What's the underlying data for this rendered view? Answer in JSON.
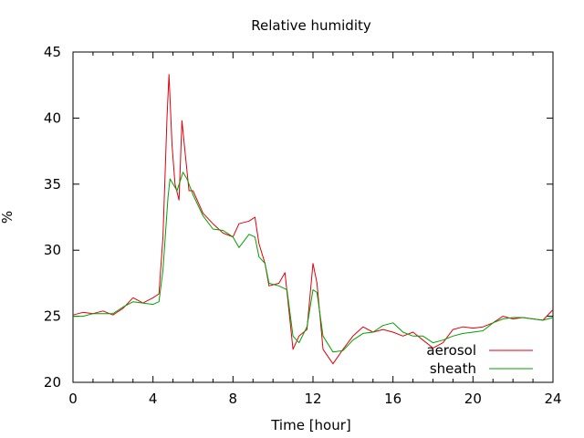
{
  "chart_data": {
    "type": "line",
    "title": "Relative humidity",
    "xlabel": "Time [hour]",
    "ylabel": "%",
    "xlim": [
      0,
      24
    ],
    "ylim": [
      20,
      45
    ],
    "xticks": [
      0,
      4,
      8,
      12,
      16,
      20,
      24
    ],
    "yticks": [
      20,
      25,
      30,
      35,
      40,
      45
    ],
    "grid": false,
    "legend_position": "bottom-right",
    "series": [
      {
        "name": "aerosol",
        "color": "#e0000b",
        "points": [
          [
            0,
            25.1
          ],
          [
            0.5,
            25.3
          ],
          [
            1,
            25.2
          ],
          [
            1.5,
            25.4
          ],
          [
            2,
            25.1
          ],
          [
            2.5,
            25.6
          ],
          [
            3,
            26.4
          ],
          [
            3.5,
            26.0
          ],
          [
            4,
            26.4
          ],
          [
            4.3,
            26.7
          ],
          [
            4.5,
            31.0
          ],
          [
            4.7,
            40.0
          ],
          [
            4.8,
            43.3
          ],
          [
            4.95,
            38.0
          ],
          [
            5.1,
            35.0
          ],
          [
            5.3,
            33.8
          ],
          [
            5.45,
            39.8
          ],
          [
            5.6,
            37.5
          ],
          [
            5.8,
            34.5
          ],
          [
            6,
            34.5
          ],
          [
            6.5,
            32.8
          ],
          [
            7,
            32.0
          ],
          [
            7.5,
            31.3
          ],
          [
            8,
            31.0
          ],
          [
            8.3,
            32.0
          ],
          [
            8.8,
            32.2
          ],
          [
            9.1,
            32.5
          ],
          [
            9.3,
            30.5
          ],
          [
            9.6,
            29.0
          ],
          [
            9.8,
            27.3
          ],
          [
            10.3,
            27.5
          ],
          [
            10.6,
            28.3
          ],
          [
            11,
            22.5
          ],
          [
            11.3,
            23.5
          ],
          [
            11.7,
            24.0
          ],
          [
            12,
            29.0
          ],
          [
            12.2,
            27.5
          ],
          [
            12.5,
            22.5
          ],
          [
            13,
            21.4
          ],
          [
            13.5,
            22.5
          ],
          [
            14,
            23.5
          ],
          [
            14.5,
            24.2
          ],
          [
            15,
            23.8
          ],
          [
            15.5,
            24.0
          ],
          [
            16,
            23.8
          ],
          [
            16.5,
            23.5
          ],
          [
            17,
            23.8
          ],
          [
            17.5,
            23.2
          ],
          [
            18,
            22.6
          ],
          [
            18.5,
            23.0
          ],
          [
            19,
            24.0
          ],
          [
            19.5,
            24.2
          ],
          [
            20,
            24.1
          ],
          [
            20.5,
            24.2
          ],
          [
            21,
            24.5
          ],
          [
            21.5,
            25.0
          ],
          [
            22,
            24.8
          ],
          [
            22.5,
            24.9
          ],
          [
            23,
            24.8
          ],
          [
            23.5,
            24.7
          ],
          [
            24,
            25.5
          ]
        ]
      },
      {
        "name": "sheath",
        "color": "#00a000",
        "points": [
          [
            0,
            25.0
          ],
          [
            0.5,
            25.0
          ],
          [
            1,
            25.2
          ],
          [
            1.5,
            25.2
          ],
          [
            2,
            25.2
          ],
          [
            2.5,
            25.7
          ],
          [
            3,
            26.1
          ],
          [
            3.5,
            26.0
          ],
          [
            4,
            25.9
          ],
          [
            4.3,
            26.1
          ],
          [
            4.5,
            28.5
          ],
          [
            4.75,
            34.0
          ],
          [
            4.85,
            35.4
          ],
          [
            5.2,
            34.5
          ],
          [
            5.5,
            35.9
          ],
          [
            5.7,
            35.4
          ],
          [
            6,
            34.2
          ],
          [
            6.5,
            32.6
          ],
          [
            7,
            31.6
          ],
          [
            7.5,
            31.5
          ],
          [
            8,
            31.0
          ],
          [
            8.3,
            30.2
          ],
          [
            8.8,
            31.2
          ],
          [
            9.1,
            31.0
          ],
          [
            9.3,
            29.5
          ],
          [
            9.6,
            29.0
          ],
          [
            9.8,
            27.5
          ],
          [
            10.3,
            27.3
          ],
          [
            10.7,
            27.0
          ],
          [
            11,
            23.5
          ],
          [
            11.3,
            23.0
          ],
          [
            11.7,
            24.2
          ],
          [
            12,
            27.0
          ],
          [
            12.2,
            26.8
          ],
          [
            12.5,
            23.5
          ],
          [
            13,
            22.3
          ],
          [
            13.5,
            22.4
          ],
          [
            14,
            23.2
          ],
          [
            14.5,
            23.7
          ],
          [
            15,
            23.8
          ],
          [
            15.5,
            24.3
          ],
          [
            16,
            24.5
          ],
          [
            16.5,
            23.8
          ],
          [
            17,
            23.5
          ],
          [
            17.5,
            23.5
          ],
          [
            18,
            23.0
          ],
          [
            18.5,
            23.2
          ],
          [
            19,
            23.5
          ],
          [
            19.5,
            23.7
          ],
          [
            20,
            23.8
          ],
          [
            20.5,
            23.9
          ],
          [
            21,
            24.5
          ],
          [
            21.5,
            24.8
          ],
          [
            22,
            24.9
          ],
          [
            22.5,
            24.9
          ],
          [
            23,
            24.8
          ],
          [
            23.5,
            24.7
          ],
          [
            24,
            24.9
          ]
        ]
      }
    ]
  }
}
